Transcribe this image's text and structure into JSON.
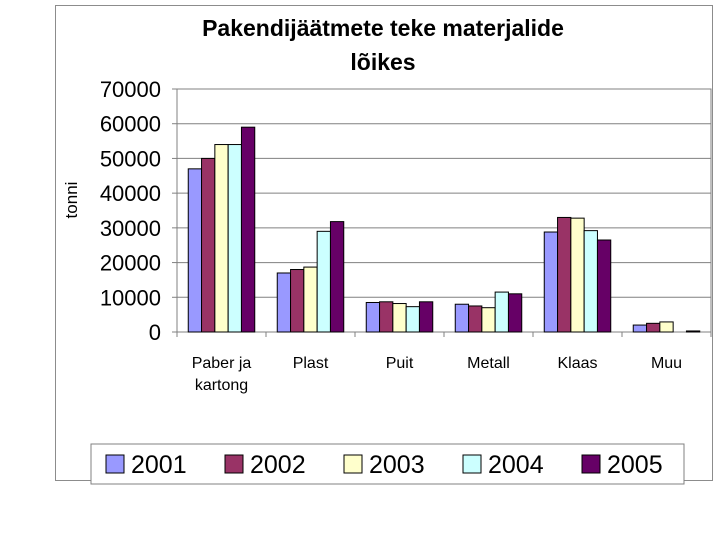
{
  "chart_data": {
    "type": "bar",
    "title_lines": [
      "Pakendijäätmete teke materjalide",
      "lõikes"
    ],
    "ylabel": "tonni",
    "xlabel": "",
    "ylim": [
      0,
      70000
    ],
    "yticks": [
      0,
      10000,
      20000,
      30000,
      40000,
      50000,
      60000,
      70000
    ],
    "grid": true,
    "legend_position": "bottom",
    "categories": [
      [
        "Paber ja",
        "kartong"
      ],
      [
        "Plast"
      ],
      [
        "Puit"
      ],
      [
        "Metall"
      ],
      [
        "Klaas"
      ],
      [
        "Muu"
      ]
    ],
    "series": [
      {
        "name": "2001",
        "color": "#9999ff",
        "values": [
          47000,
          17000,
          8500,
          8000,
          28800,
          2000
        ]
      },
      {
        "name": "2002",
        "color": "#993366",
        "values": [
          50000,
          18000,
          8700,
          7500,
          33000,
          2500
        ]
      },
      {
        "name": "2003",
        "color": "#ffffcc",
        "values": [
          54000,
          18700,
          8200,
          7000,
          32800,
          2900
        ]
      },
      {
        "name": "2004",
        "color": "#ccffff",
        "values": [
          54000,
          29000,
          7300,
          11500,
          29200,
          0
        ]
      },
      {
        "name": "2005",
        "color": "#660066",
        "values": [
          59000,
          31800,
          8700,
          11000,
          26500,
          300
        ]
      }
    ]
  }
}
